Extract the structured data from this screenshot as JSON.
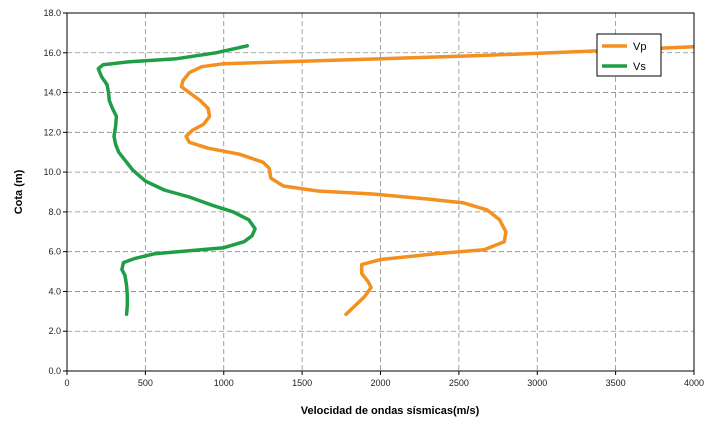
{
  "chart_data": {
    "type": "line",
    "xlabel": "Velocidad de ondas sísmicas(m/s)",
    "ylabel": "Cota (m)",
    "xlim": [
      0,
      4000
    ],
    "ylim": [
      0,
      18
    ],
    "x_ticks": [
      "0",
      "500",
      "1000",
      "1500",
      "2000",
      "2500",
      "3000",
      "3500",
      "4000"
    ],
    "y_ticks": [
      "0.0",
      "2.0",
      "4.0",
      "6.0",
      "8.0",
      "10.0",
      "12.0",
      "14.0",
      "16.0",
      "18.0"
    ],
    "grid": true,
    "legend_position": "top-right",
    "series": [
      {
        "name": "Vp",
        "color": "#f39020",
        "points": [
          [
            1780,
            2.85
          ],
          [
            1840,
            3.3
          ],
          [
            1900,
            3.75
          ],
          [
            1940,
            4.2
          ],
          [
            1920,
            4.5
          ],
          [
            1880,
            4.9
          ],
          [
            1880,
            5.35
          ],
          [
            2000,
            5.6
          ],
          [
            2350,
            5.9
          ],
          [
            2660,
            6.1
          ],
          [
            2790,
            6.5
          ],
          [
            2800,
            7.0
          ],
          [
            2760,
            7.6
          ],
          [
            2680,
            8.1
          ],
          [
            2530,
            8.45
          ],
          [
            2300,
            8.65
          ],
          [
            1950,
            8.9
          ],
          [
            1600,
            9.05
          ],
          [
            1380,
            9.3
          ],
          [
            1300,
            9.7
          ],
          [
            1290,
            10.2
          ],
          [
            1250,
            10.5
          ],
          [
            1100,
            10.9
          ],
          [
            900,
            11.2
          ],
          [
            780,
            11.5
          ],
          [
            760,
            11.8
          ],
          [
            800,
            12.1
          ],
          [
            870,
            12.4
          ],
          [
            910,
            12.8
          ],
          [
            900,
            13.2
          ],
          [
            850,
            13.6
          ],
          [
            780,
            14.0
          ],
          [
            730,
            14.3
          ],
          [
            740,
            14.6
          ],
          [
            780,
            15.0
          ],
          [
            860,
            15.3
          ],
          [
            1000,
            15.45
          ],
          [
            1600,
            15.6
          ],
          [
            2600,
            15.85
          ],
          [
            3400,
            16.1
          ],
          [
            4000,
            16.3
          ]
        ]
      },
      {
        "name": "Vs",
        "color": "#1f9e47",
        "points": [
          [
            380,
            2.85
          ],
          [
            385,
            3.3
          ],
          [
            385,
            3.8
          ],
          [
            380,
            4.3
          ],
          [
            370,
            4.8
          ],
          [
            350,
            5.1
          ],
          [
            360,
            5.45
          ],
          [
            430,
            5.65
          ],
          [
            560,
            5.9
          ],
          [
            780,
            6.05
          ],
          [
            1000,
            6.2
          ],
          [
            1130,
            6.5
          ],
          [
            1180,
            6.8
          ],
          [
            1200,
            7.15
          ],
          [
            1160,
            7.6
          ],
          [
            1060,
            8.0
          ],
          [
            920,
            8.35
          ],
          [
            780,
            8.75
          ],
          [
            620,
            9.1
          ],
          [
            500,
            9.55
          ],
          [
            420,
            10.1
          ],
          [
            370,
            10.6
          ],
          [
            330,
            11.0
          ],
          [
            310,
            11.4
          ],
          [
            300,
            11.8
          ],
          [
            310,
            12.3
          ],
          [
            315,
            12.8
          ],
          [
            290,
            13.2
          ],
          [
            270,
            13.6
          ],
          [
            265,
            14.0
          ],
          [
            255,
            14.4
          ],
          [
            220,
            14.8
          ],
          [
            200,
            15.2
          ],
          [
            230,
            15.4
          ],
          [
            400,
            15.55
          ],
          [
            700,
            15.7
          ],
          [
            950,
            16.0
          ],
          [
            1150,
            16.35
          ]
        ]
      }
    ]
  }
}
